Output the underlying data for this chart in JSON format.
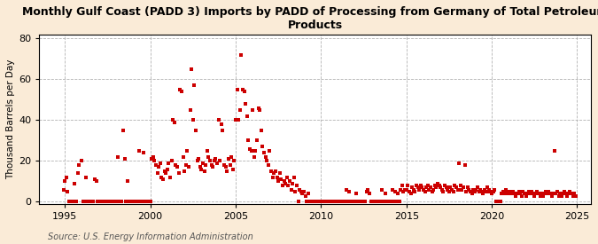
{
  "title": "Monthly Gulf Coast (PADD 3) Imports by PADD of Processing from Germany of Total Petroleum\nProducts",
  "ylabel": "Thousand Barrels per Day",
  "source": "Source: U.S. Energy Information Administration",
  "outer_bg": "#faebd7",
  "plot_bg": "#ffffff",
  "marker_color": "#cc0000",
  "marker_size": 9,
  "xlim": [
    1993.5,
    2025.8
  ],
  "ylim": [
    -1,
    82
  ],
  "yticks": [
    0,
    20,
    40,
    60,
    80
  ],
  "xticks": [
    1995,
    2000,
    2005,
    2010,
    2015,
    2020,
    2025
  ],
  "data": [
    [
      1994.917,
      6
    ],
    [
      1995.0,
      10
    ],
    [
      1995.083,
      12
    ],
    [
      1995.167,
      5
    ],
    [
      1995.25,
      0
    ],
    [
      1995.333,
      0
    ],
    [
      1995.417,
      0
    ],
    [
      1995.5,
      0
    ],
    [
      1995.583,
      9
    ],
    [
      1995.667,
      0
    ],
    [
      1995.75,
      14
    ],
    [
      1995.833,
      18
    ],
    [
      1996.0,
      20
    ],
    [
      1996.083,
      0
    ],
    [
      1996.167,
      0
    ],
    [
      1996.25,
      12
    ],
    [
      1996.333,
      0
    ],
    [
      1996.417,
      0
    ],
    [
      1996.5,
      0
    ],
    [
      1996.583,
      0
    ],
    [
      1996.667,
      0
    ],
    [
      1996.75,
      11
    ],
    [
      1996.833,
      10
    ],
    [
      1996.917,
      0
    ],
    [
      1997.0,
      0
    ],
    [
      1997.083,
      0
    ],
    [
      1997.167,
      0
    ],
    [
      1997.25,
      0
    ],
    [
      1997.333,
      0
    ],
    [
      1997.417,
      0
    ],
    [
      1997.5,
      0
    ],
    [
      1997.583,
      0
    ],
    [
      1997.667,
      0
    ],
    [
      1997.75,
      0
    ],
    [
      1997.833,
      0
    ],
    [
      1997.917,
      0
    ],
    [
      1998.0,
      0
    ],
    [
      1998.083,
      22
    ],
    [
      1998.167,
      0
    ],
    [
      1998.25,
      0
    ],
    [
      1998.333,
      0
    ],
    [
      1998.417,
      35
    ],
    [
      1998.5,
      21
    ],
    [
      1998.583,
      0
    ],
    [
      1998.667,
      10
    ],
    [
      1998.75,
      0
    ],
    [
      1998.833,
      0
    ],
    [
      1998.917,
      0
    ],
    [
      1999.0,
      0
    ],
    [
      1999.083,
      0
    ],
    [
      1999.167,
      0
    ],
    [
      1999.25,
      0
    ],
    [
      1999.333,
      25
    ],
    [
      1999.417,
      0
    ],
    [
      1999.5,
      0
    ],
    [
      1999.583,
      24
    ],
    [
      1999.667,
      0
    ],
    [
      1999.75,
      0
    ],
    [
      1999.833,
      0
    ],
    [
      1999.917,
      0
    ],
    [
      2000.0,
      0
    ],
    [
      2000.083,
      21
    ],
    [
      2000.167,
      22
    ],
    [
      2000.25,
      20
    ],
    [
      2000.333,
      18
    ],
    [
      2000.417,
      14
    ],
    [
      2000.5,
      17
    ],
    [
      2000.583,
      19
    ],
    [
      2000.667,
      12
    ],
    [
      2000.75,
      11
    ],
    [
      2000.833,
      15
    ],
    [
      2000.917,
      14
    ],
    [
      2001.0,
      16
    ],
    [
      2001.083,
      19
    ],
    [
      2001.167,
      12
    ],
    [
      2001.25,
      20
    ],
    [
      2001.333,
      40
    ],
    [
      2001.417,
      39
    ],
    [
      2001.5,
      18
    ],
    [
      2001.583,
      17
    ],
    [
      2001.667,
      14
    ],
    [
      2001.75,
      55
    ],
    [
      2001.833,
      54
    ],
    [
      2001.917,
      22
    ],
    [
      2002.0,
      15
    ],
    [
      2002.083,
      18
    ],
    [
      2002.167,
      25
    ],
    [
      2002.25,
      17
    ],
    [
      2002.333,
      45
    ],
    [
      2002.417,
      65
    ],
    [
      2002.5,
      40
    ],
    [
      2002.583,
      57
    ],
    [
      2002.667,
      35
    ],
    [
      2002.75,
      20
    ],
    [
      2002.833,
      21
    ],
    [
      2002.917,
      17
    ],
    [
      2003.0,
      16
    ],
    [
      2003.083,
      19
    ],
    [
      2003.167,
      15
    ],
    [
      2003.25,
      18
    ],
    [
      2003.333,
      25
    ],
    [
      2003.417,
      22
    ],
    [
      2003.5,
      20
    ],
    [
      2003.583,
      18
    ],
    [
      2003.667,
      17
    ],
    [
      2003.75,
      20
    ],
    [
      2003.833,
      21
    ],
    [
      2003.917,
      19
    ],
    [
      2004.0,
      40
    ],
    [
      2004.083,
      20
    ],
    [
      2004.167,
      38
    ],
    [
      2004.25,
      35
    ],
    [
      2004.333,
      18
    ],
    [
      2004.417,
      17
    ],
    [
      2004.5,
      15
    ],
    [
      2004.583,
      21
    ],
    [
      2004.667,
      18
    ],
    [
      2004.75,
      22
    ],
    [
      2004.833,
      16
    ],
    [
      2004.917,
      20
    ],
    [
      2005.0,
      40
    ],
    [
      2005.083,
      55
    ],
    [
      2005.167,
      40
    ],
    [
      2005.25,
      45
    ],
    [
      2005.333,
      72
    ],
    [
      2005.417,
      55
    ],
    [
      2005.5,
      54
    ],
    [
      2005.583,
      48
    ],
    [
      2005.667,
      42
    ],
    [
      2005.75,
      30
    ],
    [
      2005.833,
      26
    ],
    [
      2005.917,
      25
    ],
    [
      2006.0,
      45
    ],
    [
      2006.083,
      22
    ],
    [
      2006.167,
      25
    ],
    [
      2006.25,
      30
    ],
    [
      2006.333,
      46
    ],
    [
      2006.417,
      45
    ],
    [
      2006.5,
      35
    ],
    [
      2006.583,
      27
    ],
    [
      2006.667,
      24
    ],
    [
      2006.75,
      22
    ],
    [
      2006.833,
      20
    ],
    [
      2006.917,
      18
    ],
    [
      2007.0,
      25
    ],
    [
      2007.083,
      15
    ],
    [
      2007.167,
      12
    ],
    [
      2007.25,
      14
    ],
    [
      2007.333,
      15
    ],
    [
      2007.417,
      12
    ],
    [
      2007.5,
      10
    ],
    [
      2007.583,
      14
    ],
    [
      2007.667,
      11
    ],
    [
      2007.75,
      8
    ],
    [
      2007.833,
      10
    ],
    [
      2007.917,
      9
    ],
    [
      2008.0,
      12
    ],
    [
      2008.083,
      8
    ],
    [
      2008.167,
      10
    ],
    [
      2008.25,
      6
    ],
    [
      2008.333,
      9
    ],
    [
      2008.417,
      12
    ],
    [
      2008.5,
      5
    ],
    [
      2008.583,
      8
    ],
    [
      2008.667,
      0
    ],
    [
      2008.75,
      6
    ],
    [
      2008.833,
      5
    ],
    [
      2008.917,
      4
    ],
    [
      2009.0,
      5
    ],
    [
      2009.083,
      3
    ],
    [
      2009.167,
      0
    ],
    [
      2009.25,
      4
    ],
    [
      2009.333,
      0
    ],
    [
      2009.417,
      0
    ],
    [
      2009.5,
      0
    ],
    [
      2009.583,
      0
    ],
    [
      2009.667,
      0
    ],
    [
      2009.75,
      0
    ],
    [
      2009.833,
      0
    ],
    [
      2009.917,
      0
    ],
    [
      2010.0,
      0
    ],
    [
      2010.083,
      0
    ],
    [
      2010.167,
      0
    ],
    [
      2010.25,
      0
    ],
    [
      2010.333,
      0
    ],
    [
      2010.417,
      0
    ],
    [
      2010.5,
      0
    ],
    [
      2010.583,
      0
    ],
    [
      2010.667,
      0
    ],
    [
      2010.75,
      0
    ],
    [
      2010.833,
      0
    ],
    [
      2010.917,
      0
    ],
    [
      2011.0,
      0
    ],
    [
      2011.083,
      0
    ],
    [
      2011.167,
      0
    ],
    [
      2011.25,
      0
    ],
    [
      2011.333,
      0
    ],
    [
      2011.417,
      0
    ],
    [
      2011.5,
      6
    ],
    [
      2011.583,
      0
    ],
    [
      2011.667,
      5
    ],
    [
      2011.75,
      0
    ],
    [
      2011.833,
      0
    ],
    [
      2011.917,
      0
    ],
    [
      2012.0,
      0
    ],
    [
      2012.083,
      4
    ],
    [
      2012.167,
      0
    ],
    [
      2012.25,
      0
    ],
    [
      2012.333,
      0
    ],
    [
      2012.417,
      0
    ],
    [
      2012.5,
      0
    ],
    [
      2012.583,
      0
    ],
    [
      2012.667,
      5
    ],
    [
      2012.75,
      6
    ],
    [
      2012.833,
      4
    ],
    [
      2012.917,
      0
    ],
    [
      2013.0,
      0
    ],
    [
      2013.083,
      0
    ],
    [
      2013.167,
      0
    ],
    [
      2013.25,
      0
    ],
    [
      2013.333,
      0
    ],
    [
      2013.417,
      0
    ],
    [
      2013.5,
      0
    ],
    [
      2013.583,
      6
    ],
    [
      2013.667,
      0
    ],
    [
      2013.75,
      4
    ],
    [
      2013.833,
      0
    ],
    [
      2013.917,
      0
    ],
    [
      2014.0,
      0
    ],
    [
      2014.083,
      0
    ],
    [
      2014.167,
      6
    ],
    [
      2014.25,
      0
    ],
    [
      2014.333,
      5
    ],
    [
      2014.417,
      0
    ],
    [
      2014.5,
      4
    ],
    [
      2014.583,
      0
    ],
    [
      2014.667,
      6
    ],
    [
      2014.75,
      8
    ],
    [
      2014.833,
      5
    ],
    [
      2014.917,
      6
    ],
    [
      2015.0,
      6
    ],
    [
      2015.083,
      8
    ],
    [
      2015.167,
      5
    ],
    [
      2015.25,
      4
    ],
    [
      2015.333,
      7
    ],
    [
      2015.417,
      6
    ],
    [
      2015.5,
      5
    ],
    [
      2015.583,
      8
    ],
    [
      2015.667,
      7
    ],
    [
      2015.75,
      6
    ],
    [
      2015.833,
      8
    ],
    [
      2015.917,
      7
    ],
    [
      2016.0,
      6
    ],
    [
      2016.083,
      5
    ],
    [
      2016.167,
      7
    ],
    [
      2016.25,
      8
    ],
    [
      2016.333,
      6
    ],
    [
      2016.417,
      7
    ],
    [
      2016.5,
      5
    ],
    [
      2016.583,
      6
    ],
    [
      2016.667,
      8
    ],
    [
      2016.75,
      7
    ],
    [
      2016.833,
      9
    ],
    [
      2016.917,
      8
    ],
    [
      2017.0,
      7
    ],
    [
      2017.083,
      6
    ],
    [
      2017.167,
      5
    ],
    [
      2017.25,
      8
    ],
    [
      2017.333,
      7
    ],
    [
      2017.417,
      6
    ],
    [
      2017.5,
      5
    ],
    [
      2017.583,
      7
    ],
    [
      2017.667,
      6
    ],
    [
      2017.75,
      5
    ],
    [
      2017.833,
      8
    ],
    [
      2017.917,
      7
    ],
    [
      2018.0,
      6
    ],
    [
      2018.083,
      19
    ],
    [
      2018.167,
      8
    ],
    [
      2018.25,
      6
    ],
    [
      2018.333,
      7
    ],
    [
      2018.417,
      18
    ],
    [
      2018.5,
      5
    ],
    [
      2018.583,
      7
    ],
    [
      2018.667,
      6
    ],
    [
      2018.75,
      5
    ],
    [
      2018.833,
      4
    ],
    [
      2018.917,
      6
    ],
    [
      2019.0,
      5
    ],
    [
      2019.083,
      6
    ],
    [
      2019.167,
      7
    ],
    [
      2019.25,
      5
    ],
    [
      2019.333,
      6
    ],
    [
      2019.417,
      5
    ],
    [
      2019.5,
      4
    ],
    [
      2019.583,
      6
    ],
    [
      2019.667,
      5
    ],
    [
      2019.75,
      7
    ],
    [
      2019.833,
      6
    ],
    [
      2019.917,
      5
    ],
    [
      2020.0,
      4
    ],
    [
      2020.083,
      5
    ],
    [
      2020.167,
      6
    ],
    [
      2020.25,
      0
    ],
    [
      2020.333,
      0
    ],
    [
      2020.417,
      0
    ],
    [
      2020.5,
      0
    ],
    [
      2020.583,
      4
    ],
    [
      2020.667,
      5
    ],
    [
      2020.75,
      4
    ],
    [
      2020.833,
      6
    ],
    [
      2020.917,
      5
    ],
    [
      2021.0,
      4
    ],
    [
      2021.083,
      5
    ],
    [
      2021.167,
      4
    ],
    [
      2021.25,
      5
    ],
    [
      2021.333,
      4
    ],
    [
      2021.417,
      3
    ],
    [
      2021.5,
      4
    ],
    [
      2021.583,
      5
    ],
    [
      2021.667,
      4
    ],
    [
      2021.75,
      3
    ],
    [
      2021.833,
      5
    ],
    [
      2021.917,
      4
    ],
    [
      2022.0,
      3
    ],
    [
      2022.083,
      4
    ],
    [
      2022.167,
      5
    ],
    [
      2022.25,
      4
    ],
    [
      2022.333,
      5
    ],
    [
      2022.417,
      4
    ],
    [
      2022.5,
      3
    ],
    [
      2022.583,
      4
    ],
    [
      2022.667,
      5
    ],
    [
      2022.75,
      4
    ],
    [
      2022.833,
      3
    ],
    [
      2022.917,
      4
    ],
    [
      2023.0,
      3
    ],
    [
      2023.083,
      4
    ],
    [
      2023.167,
      5
    ],
    [
      2023.25,
      4
    ],
    [
      2023.333,
      5
    ],
    [
      2023.417,
      4
    ],
    [
      2023.5,
      3
    ],
    [
      2023.583,
      4
    ],
    [
      2023.667,
      25
    ],
    [
      2023.75,
      4
    ],
    [
      2023.833,
      5
    ],
    [
      2023.917,
      3
    ],
    [
      2024.0,
      4
    ],
    [
      2024.083,
      3
    ],
    [
      2024.167,
      4
    ],
    [
      2024.25,
      5
    ],
    [
      2024.333,
      4
    ],
    [
      2024.417,
      3
    ],
    [
      2024.5,
      4
    ],
    [
      2024.583,
      5
    ],
    [
      2024.667,
      4
    ],
    [
      2024.75,
      3
    ],
    [
      2024.833,
      4
    ],
    [
      2024.917,
      3
    ]
  ]
}
